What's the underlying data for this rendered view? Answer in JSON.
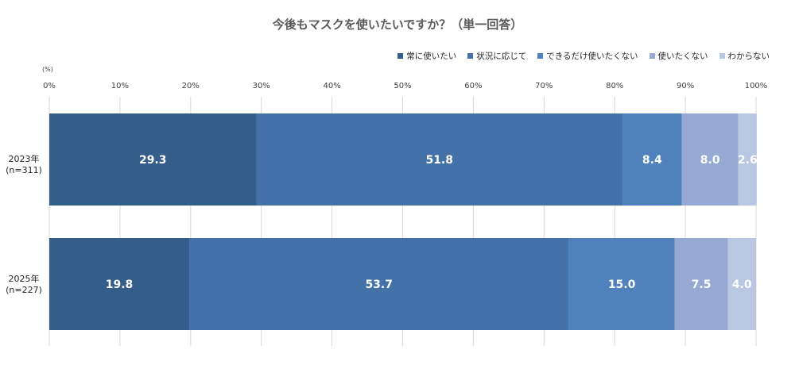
{
  "title": "今後もマスクを使いたいですか？（単一回答）",
  "unit_label": "(%)",
  "legend": [
    {
      "label": "常に使いたい",
      "color": "#355D8C"
    },
    {
      "label": "状況に応じて",
      "color": "#4472A8"
    },
    {
      "label": "できるだけ使いたくない",
      "color": "#4F81BD"
    },
    {
      "label": "使いたくない",
      "color": "#95A9D3"
    },
    {
      "label": "わからない",
      "color": "#BAC7E3"
    }
  ],
  "rows": [
    {
      "year": "2023年",
      "n": "(n=311)"
    },
    {
      "year": "2025年",
      "n": "(n=227)"
    }
  ],
  "chart_data": {
    "type": "bar",
    "orientation": "horizontal",
    "stacked": true,
    "categories": [
      "2023年 (n=311)",
      "2025年 (n=227)"
    ],
    "series": [
      {
        "name": "常に使いたい",
        "values": [
          29.3,
          19.8
        ],
        "labels": [
          "29.3",
          "19.8"
        ],
        "color": "#355D8C"
      },
      {
        "name": "状況に応じて",
        "values": [
          51.8,
          53.7
        ],
        "labels": [
          "51.8",
          "53.7"
        ],
        "color": "#4472A8"
      },
      {
        "name": "できるだけ使いたくない",
        "values": [
          8.4,
          15.0
        ],
        "labels": [
          "8.4",
          "15.0"
        ],
        "color": "#4F81BD"
      },
      {
        "name": "使いたくない",
        "values": [
          8.0,
          7.5
        ],
        "labels": [
          "8.0",
          "7.5"
        ],
        "color": "#95A9D3"
      },
      {
        "name": "わからない",
        "values": [
          2.6,
          4.0
        ],
        "labels": [
          "2.6",
          "4.0"
        ],
        "color": "#BAC7E3"
      }
    ],
    "title": "今後もマスクを使いたいですか？（単一回答）",
    "xlim": [
      0,
      100
    ],
    "ticks": [
      "0%",
      "10%",
      "20%",
      "30%",
      "40%",
      "50%",
      "60%",
      "70%",
      "80%",
      "90%",
      "100%"
    ],
    "grid": true,
    "legend_position": "top-right"
  }
}
